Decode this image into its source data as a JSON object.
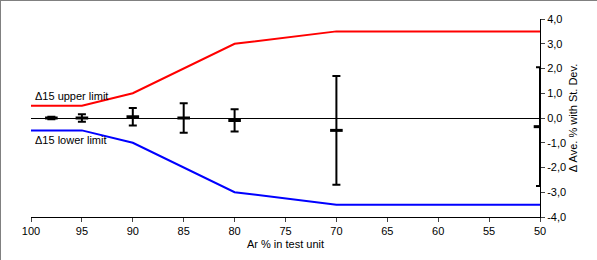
{
  "chart_data": {
    "type": "line",
    "x_label": "Ar % in test unit",
    "y_label": "Δ Ave. % with St. Dev.",
    "xlim": [
      100,
      50
    ],
    "xticks": [
      100,
      95,
      90,
      85,
      80,
      75,
      70,
      65,
      60,
      55,
      50
    ],
    "ylim": [
      -4,
      4
    ],
    "yticks": [
      {
        "value": 4,
        "label": "4,0"
      },
      {
        "value": 3,
        "label": "3,0"
      },
      {
        "value": 2,
        "label": "2,0"
      },
      {
        "value": 1,
        "label": "1,0"
      },
      {
        "value": 0,
        "label": "0,0"
      },
      {
        "value": -1,
        "label": "-1,0"
      },
      {
        "value": -2,
        "label": "-2,0"
      },
      {
        "value": -3,
        "label": "-3,0"
      },
      {
        "value": -4,
        "label": "-4,0"
      }
    ],
    "grid": false,
    "series": [
      {
        "name": "Δ15 upper limit",
        "color": "#ff0000",
        "type": "line",
        "x": [
          100,
          95,
          90,
          85,
          80,
          70,
          50
        ],
        "values": [
          0.5,
          0.5,
          1.0,
          2.0,
          3.0,
          3.5,
          3.5
        ]
      },
      {
        "name": "Δ15 lower limit",
        "color": "#0000ff",
        "type": "line",
        "x": [
          100,
          95,
          90,
          85,
          80,
          70,
          50
        ],
        "values": [
          -0.5,
          -0.5,
          -1.0,
          -2.0,
          -3.0,
          -3.5,
          -3.5
        ]
      },
      {
        "color": "#000000",
        "type": "scatter",
        "marker": "dash",
        "x": [
          98,
          95,
          90,
          85,
          80,
          70,
          50
        ],
        "values": [
          0.0,
          0.0,
          0.05,
          0.0,
          -0.1,
          -0.5,
          -0.35
        ],
        "error": [
          0.05,
          0.15,
          0.35,
          0.6,
          0.45,
          2.2,
          2.4
        ]
      }
    ]
  }
}
